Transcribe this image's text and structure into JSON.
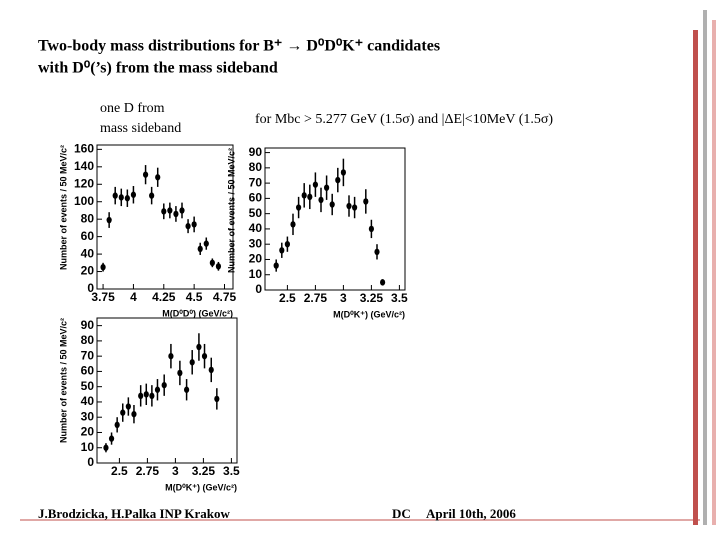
{
  "slide": {
    "title_line1": "Two-body mass distributions for B⁺ → D⁰D⁰K⁺ candidates",
    "title_line2": "with D⁰(’s) from the mass sideband",
    "note_left_line1": "one D from",
    "note_left_line2": "mass sideband",
    "note_right": "for Mbc > 5.277 GeV (1.5σ)  and  |ΔE|<10MeV (1.5σ)",
    "footer_authors": "J.Brodzicka, H.Palka  INP Krakow",
    "footer_event": "DC",
    "footer_date": "April 10th, 2006"
  },
  "chart_data": [
    {
      "type": "scatter",
      "x_label": "M(D⁰D⁰) (GeV/c²)",
      "y_label": "Number of events / 50 MeV/c²",
      "color": "#000000",
      "x": [
        3.75,
        3.8,
        3.85,
        3.9,
        3.95,
        4.0,
        4.1,
        4.15,
        4.2,
        4.25,
        4.3,
        4.35,
        4.4,
        4.45,
        4.5,
        4.55,
        4.6,
        4.65,
        4.7
      ],
      "values": [
        25,
        79,
        107,
        105,
        104,
        108,
        131,
        107,
        128,
        89,
        90,
        86,
        90,
        72,
        74,
        46,
        52,
        30,
        26
      ],
      "errors": [
        5,
        9,
        10,
        10,
        10,
        10,
        11,
        10,
        11,
        9,
        9,
        9,
        9,
        8,
        9,
        7,
        7,
        5,
        5
      ],
      "xlim": [
        3.7,
        4.82
      ],
      "ylim": [
        0,
        165
      ],
      "xticks": [
        3.75,
        4,
        4.25,
        4.5,
        4.75
      ],
      "yticks": [
        0,
        20,
        40,
        60,
        80,
        100,
        120,
        140,
        160
      ]
    },
    {
      "type": "scatter",
      "x_label": "M(D⁰K⁺) (GeV/c²)",
      "y_label": "Number of events / 50 MeV/c²",
      "color": "#000000",
      "x": [
        2.4,
        2.45,
        2.5,
        2.55,
        2.6,
        2.65,
        2.7,
        2.75,
        2.8,
        2.85,
        2.9,
        2.95,
        3.0,
        3.05,
        3.1,
        3.2,
        3.25,
        3.3,
        3.35
      ],
      "values": [
        16,
        26,
        30,
        43,
        54,
        62,
        61,
        69,
        59,
        67,
        56,
        72,
        77,
        55,
        54,
        58,
        40,
        25,
        5
      ],
      "errors": [
        4,
        5,
        5,
        7,
        7,
        8,
        8,
        8,
        8,
        8,
        7,
        8,
        9,
        7,
        7,
        8,
        6,
        5,
        2
      ],
      "xlim": [
        2.3,
        3.55
      ],
      "ylim": [
        0,
        93
      ],
      "xticks": [
        2.5,
        2.75,
        3,
        3.25,
        3.5
      ],
      "yticks": [
        0,
        10,
        20,
        30,
        40,
        50,
        60,
        70,
        80,
        90
      ]
    },
    {
      "type": "scatter",
      "x_label": "M(D⁰K⁺) (GeV/c²)",
      "y_label": "Number of events / 50 MeV/c²",
      "color": "#000000",
      "x": [
        2.38,
        2.43,
        2.48,
        2.53,
        2.58,
        2.63,
        2.69,
        2.74,
        2.79,
        2.84,
        2.9,
        2.96,
        3.04,
        3.1,
        3.15,
        3.21,
        3.26,
        3.32,
        3.37
      ],
      "values": [
        10,
        16,
        25,
        33,
        37,
        32,
        44,
        45,
        44,
        48,
        51,
        70,
        59,
        48,
        66,
        76,
        70,
        61,
        42
      ],
      "errors": [
        3,
        4,
        5,
        6,
        6,
        6,
        7,
        7,
        7,
        7,
        7,
        8,
        8,
        7,
        8,
        9,
        8,
        8,
        7
      ],
      "xlim": [
        2.3,
        3.55
      ],
      "ylim": [
        0,
        95
      ],
      "xticks": [
        2.5,
        2.75,
        3,
        3.25,
        3.5
      ],
      "yticks": [
        0,
        10,
        20,
        30,
        40,
        50,
        60,
        70,
        80,
        90
      ]
    }
  ]
}
